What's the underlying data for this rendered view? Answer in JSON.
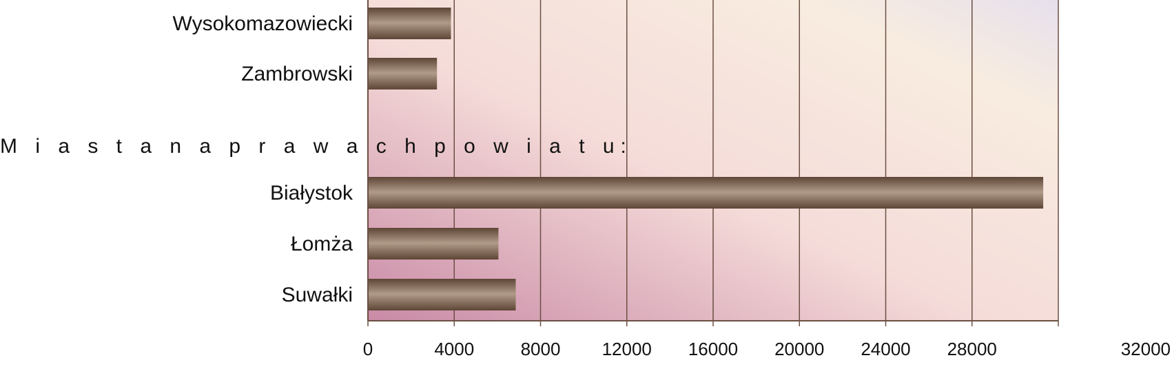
{
  "chart_data": {
    "type": "bar",
    "orientation": "horizontal",
    "rows": [
      {
        "kind": "category",
        "label": "Wysokomazowiecki",
        "value": 3850
      },
      {
        "kind": "category",
        "label": "Zambrowski",
        "value": 3200
      },
      {
        "kind": "group",
        "label": "M i a s t a   n a   p r a w a c h   p o w i a t u:"
      },
      {
        "kind": "category",
        "label": "Białystok",
        "value": 31300
      },
      {
        "kind": "category",
        "label": "Łomża",
        "value": 6050
      },
      {
        "kind": "category",
        "label": "Suwałki",
        "value": 6850
      }
    ],
    "xlim": [
      0,
      32000
    ],
    "xticks": [
      0,
      4000,
      8000,
      12000,
      16000,
      20000,
      24000,
      28000,
      32000
    ],
    "xtick_labels": [
      "0",
      "4000",
      "8000",
      "12000",
      "16000",
      "20000",
      "24000",
      "28000",
      "32000"
    ],
    "grid": "vertical",
    "colors": {
      "bar_dark": "#5e4636",
      "bar_light": "#b09a88",
      "grid": "#6b4f43",
      "axis": "#6b4f43",
      "background_start": "#c98aa6",
      "background_mid": "#f5dcd9",
      "background_end": "#f8ece0",
      "background_corner": "#e6e0ec"
    }
  }
}
